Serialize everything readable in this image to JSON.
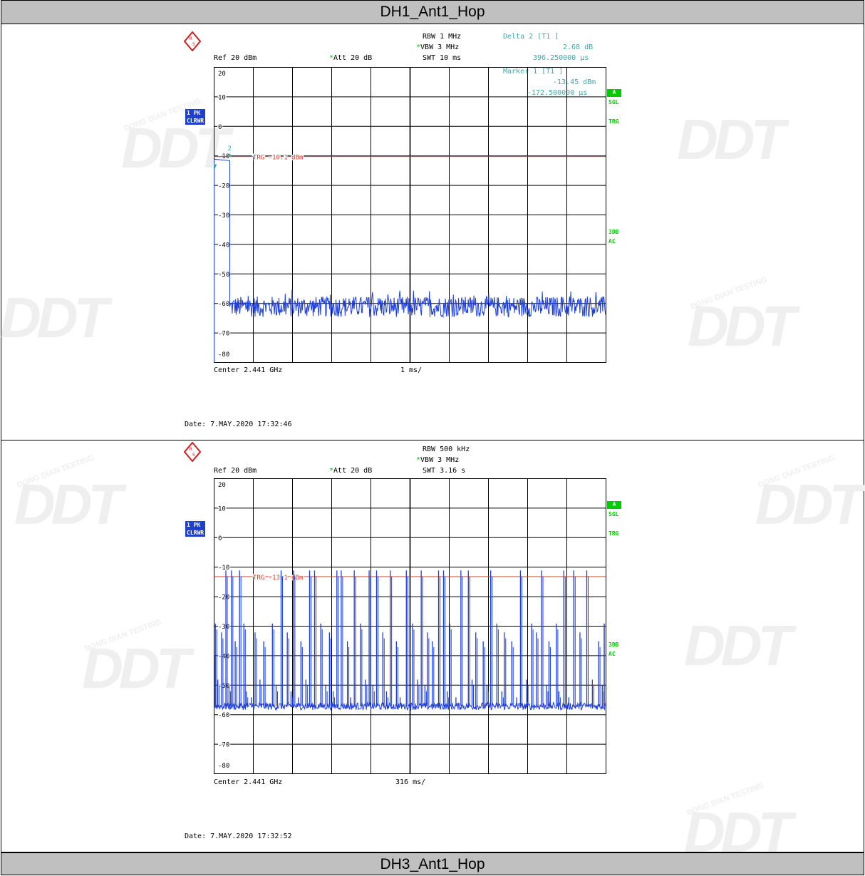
{
  "titles": {
    "top": "DH1_Ant1_Hop",
    "bottom": "DH3_Ant1_Hop"
  },
  "watermark": {
    "brand": "DDT",
    "tagline": "DONG DIAN TESTING"
  },
  "colors": {
    "trace": "#1f3fd8",
    "trigger_line": "#d93b2b",
    "marker_text": "#3fa8a8",
    "status_green": "#00cc00",
    "header_bg": "#c0c0c0"
  },
  "icons": [
    "rs-logo-icon"
  ],
  "chart_data": [
    {
      "type": "line",
      "name": "DH1_Ant1_Hop",
      "settings": {
        "rbw": "RBW 1 MHz",
        "vbw": "VBW 3 MHz",
        "swt": "SWT 10 ms",
        "ref": "Ref  20 dBm",
        "att": "Att  20 dB"
      },
      "markers": {
        "delta_label": "Delta 2 [T1 ]",
        "delta_level": "2.68 dB",
        "delta_time": "396.250000 µs",
        "marker_label": "Marker 1 [T1 ]",
        "marker_level": "-13.45 dBm",
        "marker_time": "-172.500000 µs",
        "m1": "1",
        "m2": "2"
      },
      "trace_badge": {
        "line1": "1 PK",
        "line2": "CLRWR"
      },
      "right_labels": {
        "a": "A",
        "sgl": "SGL",
        "trg": "TRG",
        "db3": "3DB",
        "ac": "AC"
      },
      "trigger": {
        "label": "TRG -10.1 dBm",
        "level": -10.1
      },
      "yticks": [
        "20",
        "10",
        "0",
        "-10",
        "-20",
        "-30",
        "-40",
        "-50",
        "-60",
        "-70",
        "-80"
      ],
      "ylim": [
        -80,
        20
      ],
      "xlim_ms": [
        0,
        10
      ],
      "footer_center": "Center 2.441 GHz",
      "footer_div": "1 ms/",
      "date": "Date: 7.MAY.2020  17:32:46",
      "burst": {
        "start_ms": 0.0,
        "end_ms": 0.4,
        "level_dbm": -11
      },
      "noise_floor_dbm": -61
    },
    {
      "type": "line",
      "name": "DH3_Ant1_Hop",
      "settings": {
        "rbw": "RBW 500 kHz",
        "vbw": "VBW 3 MHz",
        "swt": "SWT 3.16 s",
        "ref": "Ref  20 dBm",
        "att": "Att  20 dB"
      },
      "trace_badge": {
        "line1": "1 PK",
        "line2": "CLRWR"
      },
      "right_labels": {
        "a": "A",
        "sgl": "SGL",
        "trg": "TRG",
        "db3": "3DB",
        "ac": "AC"
      },
      "trigger": {
        "label": "TRG -13.1 dBm",
        "level": -13.1
      },
      "yticks": [
        "20",
        "10",
        "0",
        "-10",
        "-20",
        "-30",
        "-40",
        "-50",
        "-60",
        "-70",
        "-80"
      ],
      "ylim": [
        -80,
        20
      ],
      "xlim_ms": [
        0,
        3160
      ],
      "footer_center": "Center 2.441 GHz",
      "footer_div": "316 ms/",
      "date": "Date: 7.MAY.2020  17:32:52",
      "noise_floor_dbm": -57,
      "tall_bursts_ms": [
        95,
        140,
        205,
        540,
        640,
        770,
        810,
        990,
        1025,
        1130,
        1250,
        1310,
        1420,
        1550,
        1670,
        1810,
        1850,
        1990,
        2050,
        2230,
        2470,
        2640,
        2820,
        2900,
        3005
      ],
      "mid_bursts_ms": [
        10,
        60,
        170,
        240,
        330,
        400,
        470,
        590,
        700,
        860,
        930,
        1075,
        1180,
        1360,
        1470,
        1600,
        1720,
        1760,
        1900,
        2110,
        2170,
        2280,
        2340,
        2400,
        2560,
        2600,
        2700,
        2760,
        2950,
        3100
      ],
      "small_bursts_ms": [
        30,
        120,
        260,
        300,
        370,
        500,
        620,
        680,
        740,
        900,
        960,
        1100,
        1220,
        1280,
        1390,
        1500,
        1640,
        1700,
        1880,
        1950,
        2080,
        2200,
        2320,
        2440,
        2520,
        2680,
        2780,
        2860,
        3050,
        3130
      ]
    }
  ]
}
